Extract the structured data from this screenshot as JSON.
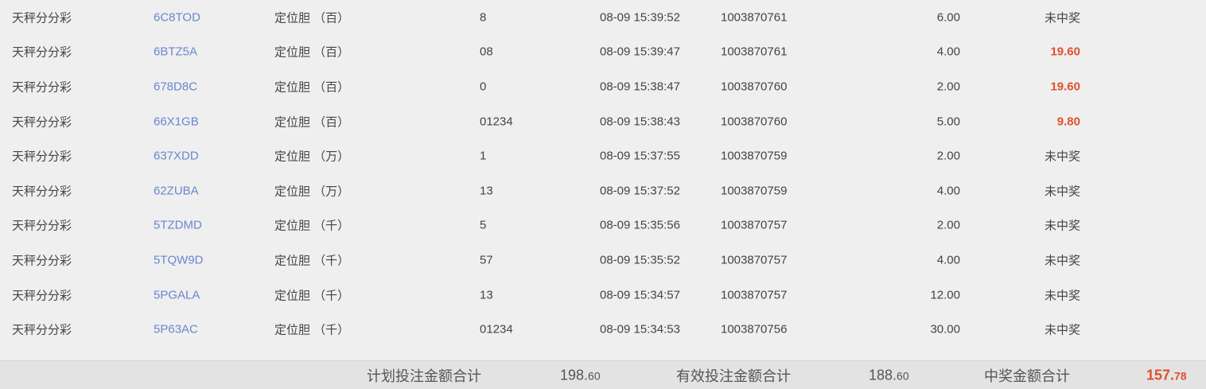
{
  "rows": [
    {
      "lottery": "天秤分分彩",
      "id": "6C8TOD",
      "play": "定位胆 （百）",
      "number": "8",
      "time": "08-09 15:39:52",
      "issue": "1003870761",
      "amount": "6.00",
      "result": "未中奖",
      "won": false
    },
    {
      "lottery": "天秤分分彩",
      "id": "6BTZ5A",
      "play": "定位胆 （百）",
      "number": "08",
      "time": "08-09 15:39:47",
      "issue": "1003870761",
      "amount": "4.00",
      "result": "19.60",
      "won": true
    },
    {
      "lottery": "天秤分分彩",
      "id": "678D8C",
      "play": "定位胆 （百）",
      "number": "0",
      "time": "08-09 15:38:47",
      "issue": "1003870760",
      "amount": "2.00",
      "result": "19.60",
      "won": true
    },
    {
      "lottery": "天秤分分彩",
      "id": "66X1GB",
      "play": "定位胆 （百）",
      "number": "01234",
      "time": "08-09 15:38:43",
      "issue": "1003870760",
      "amount": "5.00",
      "result": "9.80",
      "won": true
    },
    {
      "lottery": "天秤分分彩",
      "id": "637XDD",
      "play": "定位胆 （万）",
      "number": "1",
      "time": "08-09 15:37:55",
      "issue": "1003870759",
      "amount": "2.00",
      "result": "未中奖",
      "won": false
    },
    {
      "lottery": "天秤分分彩",
      "id": "62ZUBA",
      "play": "定位胆 （万）",
      "number": "13",
      "time": "08-09 15:37:52",
      "issue": "1003870759",
      "amount": "4.00",
      "result": "未中奖",
      "won": false
    },
    {
      "lottery": "天秤分分彩",
      "id": "5TZDMD",
      "play": "定位胆 （千）",
      "number": "5",
      "time": "08-09 15:35:56",
      "issue": "1003870757",
      "amount": "2.00",
      "result": "未中奖",
      "won": false
    },
    {
      "lottery": "天秤分分彩",
      "id": "5TQW9D",
      "play": "定位胆 （千）",
      "number": "57",
      "time": "08-09 15:35:52",
      "issue": "1003870757",
      "amount": "4.00",
      "result": "未中奖",
      "won": false
    },
    {
      "lottery": "天秤分分彩",
      "id": "5PGALA",
      "play": "定位胆 （千）",
      "number": "13",
      "time": "08-09 15:34:57",
      "issue": "1003870757",
      "amount": "12.00",
      "result": "未中奖",
      "won": false
    },
    {
      "lottery": "天秤分分彩",
      "id": "5P63AC",
      "play": "定位胆 （千）",
      "number": "01234",
      "time": "08-09 15:34:53",
      "issue": "1003870756",
      "amount": "30.00",
      "result": "未中奖",
      "won": false
    }
  ],
  "footer": {
    "planned_label": "计划投注金额合计",
    "planned_int": "198.",
    "planned_dec": "60",
    "valid_label": "有效投注金额合计",
    "valid_int": "188.",
    "valid_dec": "60",
    "win_label": "中奖金额合计",
    "win_int": "157.",
    "win_dec": "78"
  },
  "colors": {
    "link": "#6b86cf",
    "win": "#e0502f"
  }
}
